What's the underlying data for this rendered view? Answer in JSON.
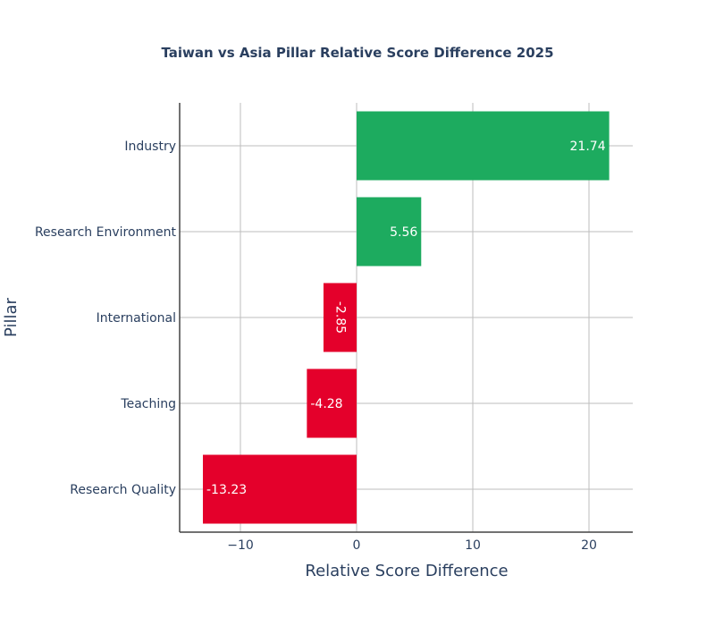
{
  "chart_data": {
    "type": "bar",
    "orientation": "horizontal",
    "title": "Taiwan vs Asia Pillar Relative Score Difference 2025",
    "xlabel": "Relative Score Difference",
    "ylabel": "Pillar",
    "categories": [
      "Industry",
      "Research Environment",
      "International",
      "Teaching",
      "Research Quality"
    ],
    "values": [
      21.74,
      5.56,
      -2.85,
      -4.28,
      -13.23
    ],
    "value_labels": [
      "21.74",
      "5.56",
      "-2.85",
      "-4.28",
      "-13.23"
    ],
    "xlim": [
      -15.0,
      23.5
    ],
    "xticks": [
      -10,
      0,
      10,
      20
    ],
    "xtick_labels": [
      "−10",
      "0",
      "10",
      "20"
    ],
    "grid": true,
    "colors": {
      "positive": "#1dab5f",
      "negative": "#e4002b"
    }
  }
}
